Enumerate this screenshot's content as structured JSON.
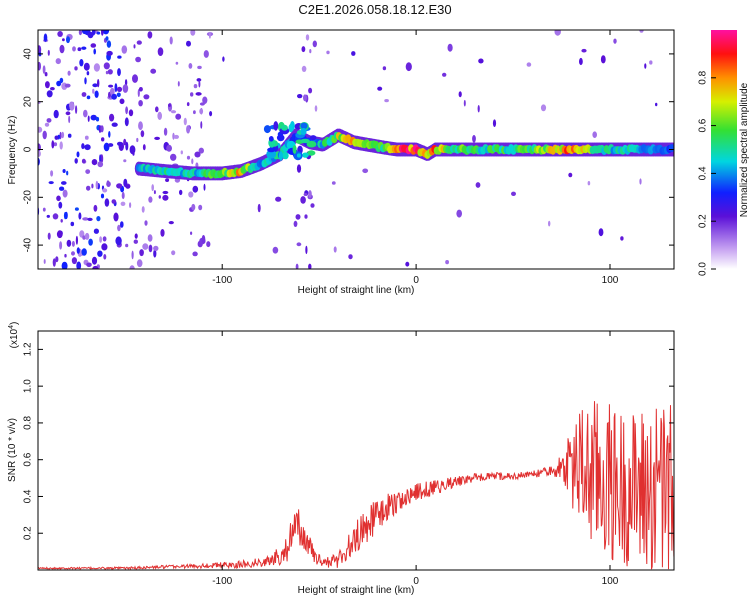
{
  "title": "C2E1.2026.058.18.12.E30",
  "chart_data": [
    {
      "type": "heatmap",
      "name": "spectrogram",
      "xlabel": "Height of straight line (km)",
      "ylabel": "Frequency (Hz)",
      "xlim": [
        -195,
        133
      ],
      "ylim": [
        -50,
        50
      ],
      "xticks": [
        -100,
        0,
        100
      ],
      "yticks": [
        -40,
        -20,
        0,
        20,
        40
      ],
      "xtick_labels": [
        "-100",
        "0",
        "100"
      ],
      "ytick_labels": [
        "-40",
        "-20",
        "0",
        "20",
        "40"
      ],
      "colorbar": {
        "label": "Normalized spectral amplitude",
        "range": [
          0,
          1
        ],
        "ticks": [
          0.0,
          0.2,
          0.4,
          0.6,
          0.8
        ],
        "tick_labels": [
          "0.0",
          "0.2",
          "0.4",
          "0.6",
          "0.8"
        ]
      },
      "ridge": {
        "x": [
          -143,
          -130,
          -115,
          -100,
          -90,
          -80,
          -70,
          -62,
          -55,
          -48,
          -40,
          -32,
          -25,
          -18,
          -10,
          0,
          6,
          10,
          20,
          40,
          60,
          80,
          100,
          120,
          133
        ],
        "freq": [
          -8,
          -9,
          -10,
          -10,
          -9,
          -6,
          -2,
          6,
          3,
          2,
          6,
          3,
          2,
          1,
          0,
          0,
          -2,
          0,
          0,
          0,
          0,
          0,
          0,
          0,
          0
        ],
        "amplitude": [
          0.45,
          0.5,
          0.5,
          0.6,
          0.8,
          0.45,
          0.5,
          0.35,
          0.35,
          0.5,
          0.7,
          0.75,
          0.8,
          0.6,
          0.9,
          0.9,
          0.7,
          0.85,
          0.6,
          0.55,
          0.6,
          0.85,
          0.5,
          0.45,
          0.4
        ]
      }
    },
    {
      "type": "line",
      "name": "snr",
      "xlabel": "Height of straight line (km)",
      "ylabel": "SNR (10 * v/v)",
      "y_multiplier": "(x10",
      "y_multiplier_exp": "4",
      "y_multiplier_close": ")",
      "xlim": [
        -195,
        133
      ],
      "ylim": [
        0,
        1.3
      ],
      "xticks": [
        -100,
        0,
        100
      ],
      "yticks": [
        0.2,
        0.4,
        0.6,
        0.8,
        1.0,
        1.2
      ],
      "xtick_labels": [
        "-100",
        "0",
        "100"
      ],
      "ytick_labels": [
        "0.2",
        "0.4",
        "0.6",
        "0.8",
        "1.0",
        "1.2"
      ],
      "color": "#e03030",
      "envelope": {
        "x": [
          -195,
          -150,
          -120,
          -90,
          -75,
          -68,
          -62,
          -58,
          -52,
          -46,
          -40,
          -34,
          -28,
          -22,
          -16,
          -10,
          -4,
          0,
          10,
          20,
          30,
          40,
          50,
          60,
          70,
          76,
          80,
          90,
          100,
          110,
          120,
          133
        ],
        "y": [
          0.01,
          0.01,
          0.02,
          0.03,
          0.05,
          0.1,
          0.22,
          0.2,
          0.06,
          0.04,
          0.06,
          0.13,
          0.22,
          0.28,
          0.33,
          0.37,
          0.4,
          0.42,
          0.45,
          0.48,
          0.5,
          0.51,
          0.51,
          0.52,
          0.54,
          0.56,
          0.57,
          0.52,
          0.47,
          0.44,
          0.43,
          0.4
        ],
        "noise": [
          0.004,
          0.006,
          0.01,
          0.02,
          0.03,
          0.07,
          0.12,
          0.12,
          0.03,
          0.03,
          0.05,
          0.08,
          0.1,
          0.1,
          0.08,
          0.06,
          0.05,
          0.05,
          0.04,
          0.03,
          0.025,
          0.02,
          0.02,
          0.02,
          0.025,
          0.08,
          0.2,
          0.3,
          0.32,
          0.3,
          0.35,
          0.4
        ]
      }
    }
  ]
}
